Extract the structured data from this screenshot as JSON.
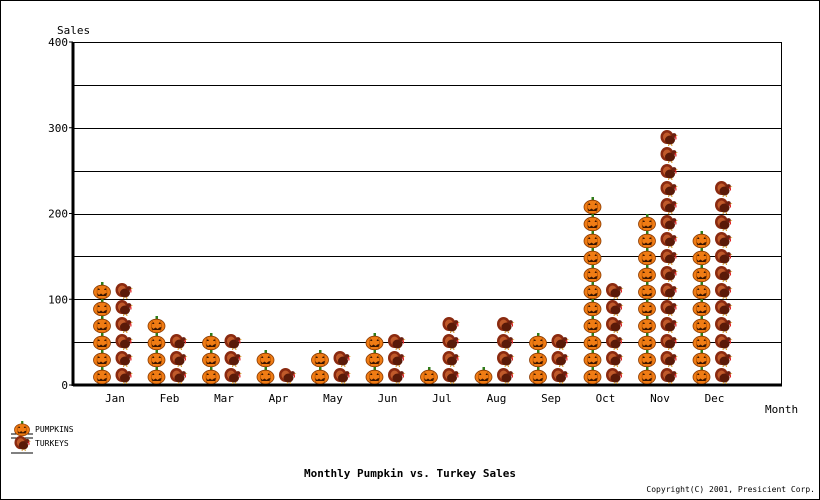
{
  "chart_data": {
    "type": "bar",
    "title": "Monthly Pumpkin vs. Turkey Sales",
    "xlabel": "Month",
    "ylabel": "Sales",
    "ylim": [
      0,
      400
    ],
    "yticks": [
      "0",
      "100",
      "200",
      "300",
      "400"
    ],
    "grid": true,
    "legend_position": "bottom-left",
    "categories": [
      "Jan",
      "Feb",
      "Mar",
      "Apr",
      "May",
      "Jun",
      "Jul",
      "Aug",
      "Sep",
      "Oct",
      "Nov",
      "Dec"
    ],
    "series": [
      {
        "name": "PUMPKINS",
        "values": [
          122,
          98,
          75,
          45,
          50,
          72,
          30,
          37,
          68,
          235,
          202,
          193
        ],
        "icon": "pumpkin-icon",
        "color": "#f07c14"
      },
      {
        "name": "TURKEYS",
        "values": [
          122,
          68,
          65,
          37,
          43,
          72,
          90,
          82,
          68,
          135,
          300,
          252
        ],
        "icon": "turkey-icon",
        "color": "#8a2a10"
      }
    ]
  },
  "footer": {
    "copyright": "Copyright(C) 2001, Presicient Corp."
  }
}
